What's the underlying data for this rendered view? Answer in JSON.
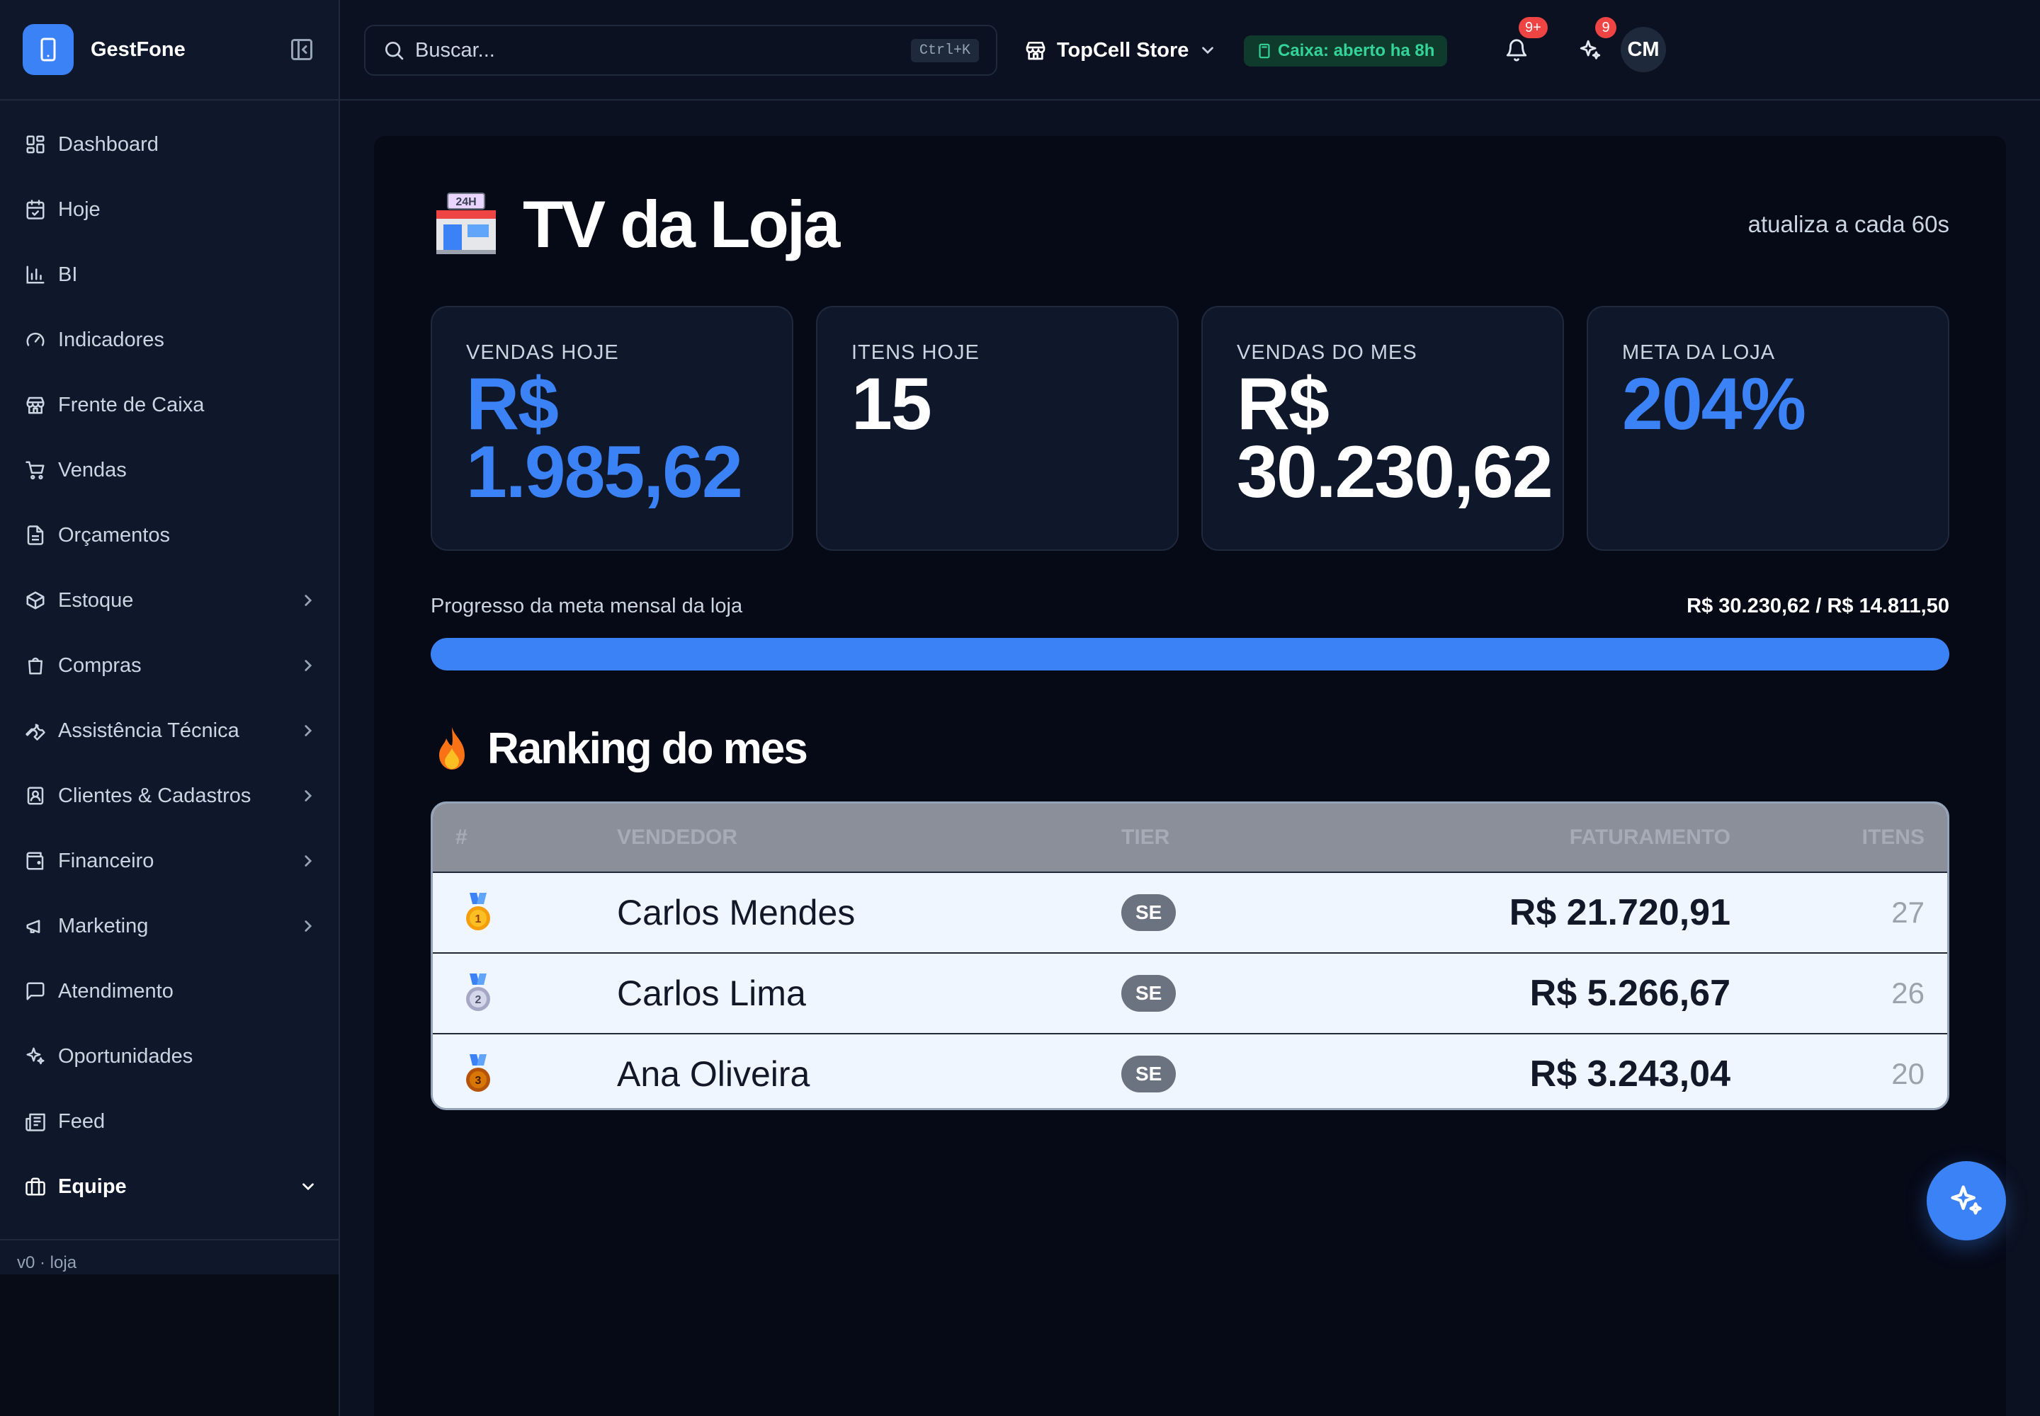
{
  "sidebar": {
    "brand": "GestFone",
    "items": [
      {
        "label": "Dashboard",
        "icon": "dashboard-icon"
      },
      {
        "label": "Hoje",
        "icon": "calendar-check-icon"
      },
      {
        "label": "BI",
        "icon": "bar-chart-icon"
      },
      {
        "label": "Indicadores",
        "icon": "gauge-icon"
      },
      {
        "label": "Frente de Caixa",
        "icon": "store-icon"
      },
      {
        "label": "Vendas",
        "icon": "cart-icon"
      },
      {
        "label": "Orçamentos",
        "icon": "document-icon"
      },
      {
        "label": "Estoque",
        "icon": "package-icon"
      },
      {
        "label": "Compras",
        "icon": "shopping-bag-icon"
      },
      {
        "label": "Assistência Técnica",
        "icon": "wrench-icon"
      },
      {
        "label": "Clientes & Cadastros",
        "icon": "contact-icon"
      },
      {
        "label": "Financeiro",
        "icon": "wallet-icon"
      },
      {
        "label": "Marketing",
        "icon": "megaphone-icon"
      },
      {
        "label": "Atendimento",
        "icon": "message-icon"
      },
      {
        "label": "Oportunidades",
        "icon": "sparkles-icon"
      },
      {
        "label": "Feed",
        "icon": "newspaper-icon"
      },
      {
        "label": "Equipe",
        "icon": "briefcase-icon"
      }
    ],
    "footer": "v0 · loja"
  },
  "topbar": {
    "search_placeholder": "Buscar...",
    "search_shortcut": "Ctrl+K",
    "store_name": "TopCell Store",
    "cash_status": "Caixa: aberto ha 8h",
    "notifications_badge": "9+",
    "ai_badge": "9",
    "avatar_initials": "CM"
  },
  "main": {
    "title": "TV da Loja",
    "refresh_note": "atualiza a cada 60s",
    "cards": [
      {
        "label": "VENDAS HOJE",
        "value_line1": "R$",
        "value_line2": "1.985,62"
      },
      {
        "label": "ITENS HOJE",
        "value": "15"
      },
      {
        "label": "VENDAS DO MES",
        "value_line1": "R$",
        "value_line2": "30.230,62"
      },
      {
        "label": "META DA LOJA",
        "value": "204%"
      }
    ],
    "progress": {
      "label": "Progresso da meta mensal da loja",
      "value_text": "R$ 30.230,62 / R$ 14.811,50",
      "fraction": 1.0
    },
    "ranking": {
      "title": "Ranking do mes",
      "columns": [
        "#",
        "VENDEDOR",
        "TIER",
        "FATURAMENTO",
        "ITENS"
      ],
      "rows": [
        {
          "medal": "1",
          "name": "Carlos Mendes",
          "tier": "SE",
          "revenue": "R$ 21.720,91",
          "items": "27"
        },
        {
          "medal": "2",
          "name": "Carlos Lima",
          "tier": "SE",
          "revenue": "R$ 5.266,67",
          "items": "26"
        },
        {
          "medal": "3",
          "name": "Ana Oliveira",
          "tier": "SE",
          "revenue": "R$ 3.243,04",
          "items": "20"
        }
      ]
    }
  },
  "colors": {
    "accent": "#3b82f6",
    "background": "#0b1120",
    "success": "#34d399",
    "danger": "#ef4444"
  }
}
